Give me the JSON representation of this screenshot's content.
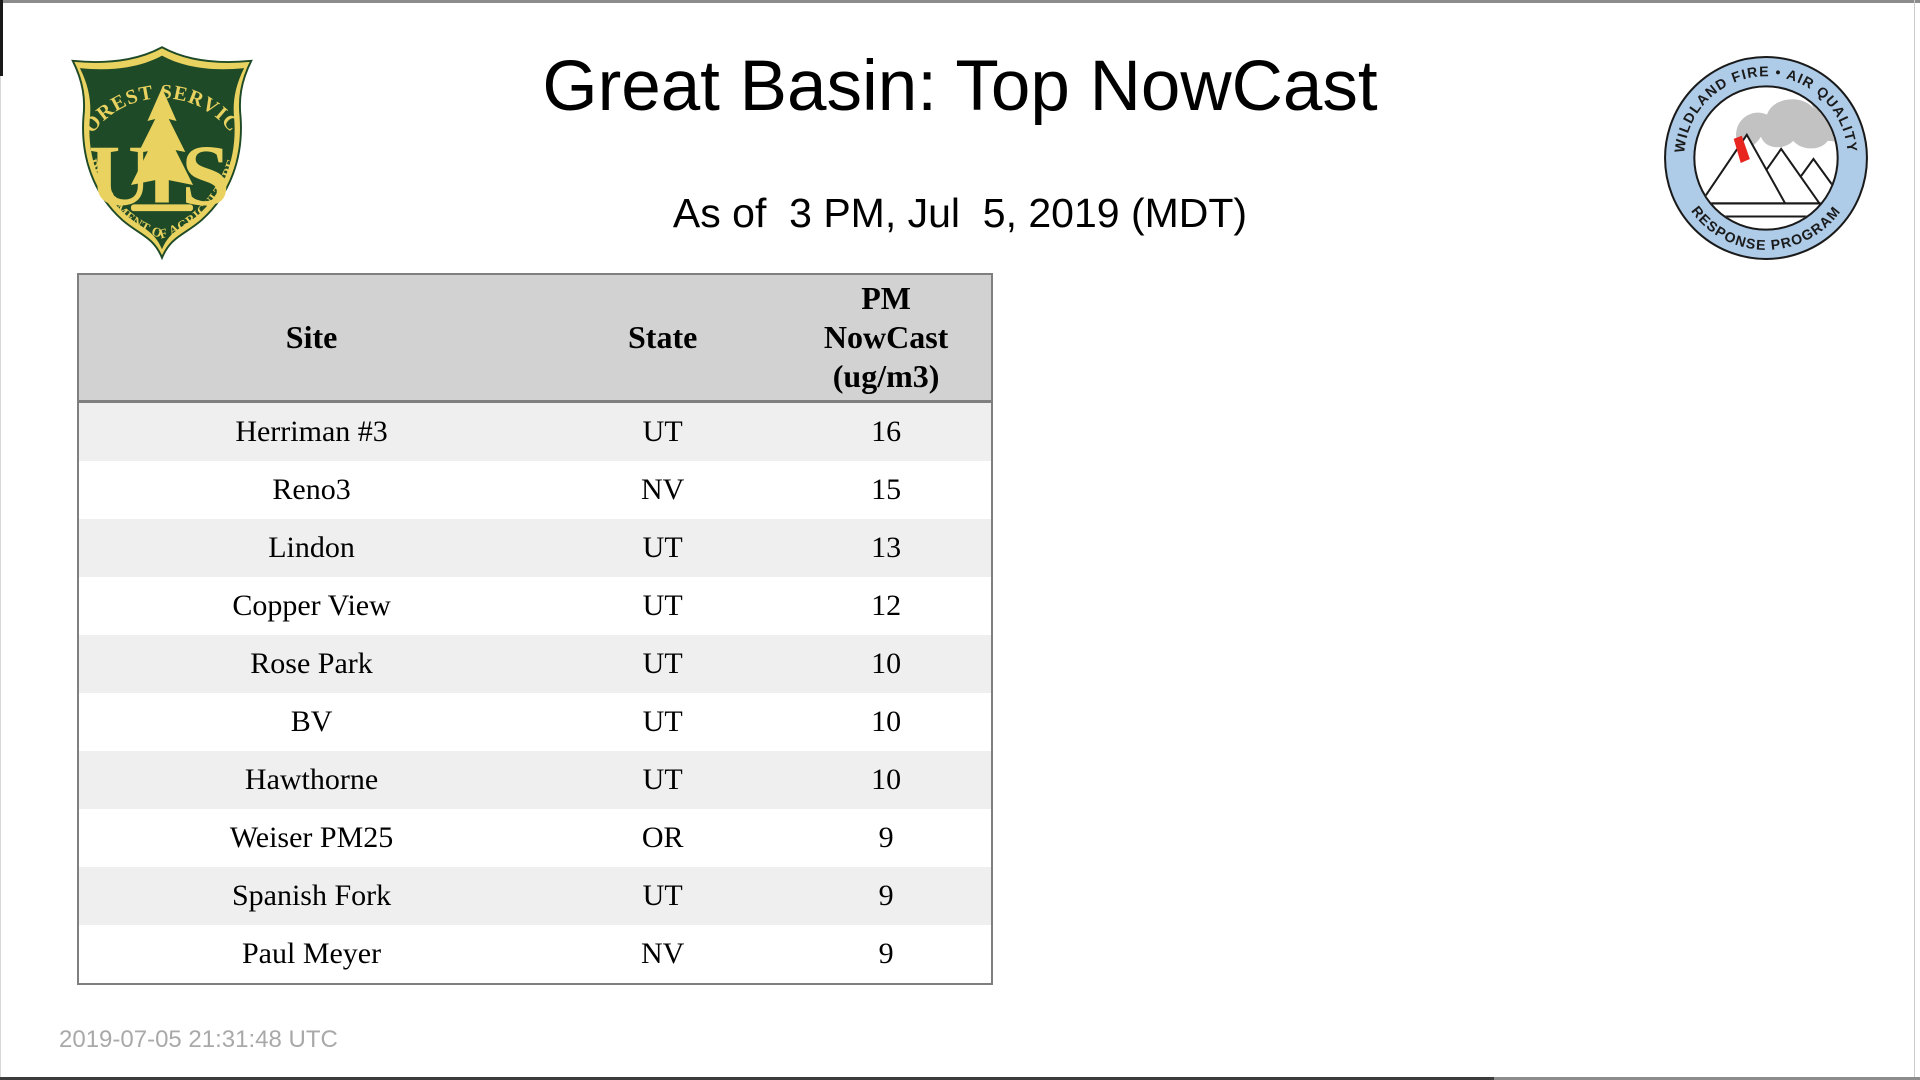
{
  "page": {
    "title": "Great Basin: Top NowCast",
    "subtitle": "As of  3 PM, Jul  5, 2019 (MDT)",
    "footer_timestamp": "2019-07-05 21:31:48 UTC"
  },
  "colors": {
    "table_header_bg": "#d2d2d2",
    "table_alt_row_bg": "#efefef",
    "table_border": "#7f7f7f",
    "shield_green": "#1f4a27",
    "shield_gold": "#e9d25f",
    "ring_blue": "#aecbe8",
    "smoke_gray": "#c2c2c2",
    "fire_red": "#e8251f",
    "footer_gray": "#a9a9a9"
  },
  "logos": {
    "forest_service": {
      "arc_top": "FOREST SERVICE",
      "letter_u": "U",
      "letter_s": "S",
      "arc_bottom": "DEPARTMENT OF AGRICULTURE"
    },
    "wfaqrp": {
      "arc_top": "WILDLAND FIRE • AIR QUALITY",
      "arc_bottom": "RESPONSE PROGRAM"
    }
  },
  "table": {
    "columns": [
      {
        "id": "site",
        "label": "Site"
      },
      {
        "id": "state",
        "label": "State"
      },
      {
        "id": "value",
        "label": "PM NowCast (ug/m3)",
        "lines": [
          "PM",
          "NowCast",
          "(ug/m3)"
        ]
      }
    ],
    "rows": [
      {
        "site": "Herriman #3",
        "state": "UT",
        "value": "16"
      },
      {
        "site": "Reno3",
        "state": "NV",
        "value": "15"
      },
      {
        "site": "Lindon",
        "state": "UT",
        "value": "13"
      },
      {
        "site": "Copper View",
        "state": "UT",
        "value": "12"
      },
      {
        "site": "Rose Park",
        "state": "UT",
        "value": "10"
      },
      {
        "site": "BV",
        "state": "UT",
        "value": "10"
      },
      {
        "site": "Hawthorne",
        "state": "UT",
        "value": "10"
      },
      {
        "site": "Weiser PM25",
        "state": "OR",
        "value": "9"
      },
      {
        "site": "Spanish Fork",
        "state": "UT",
        "value": "9"
      },
      {
        "site": "Paul Meyer",
        "state": "NV",
        "value": "9"
      }
    ]
  }
}
